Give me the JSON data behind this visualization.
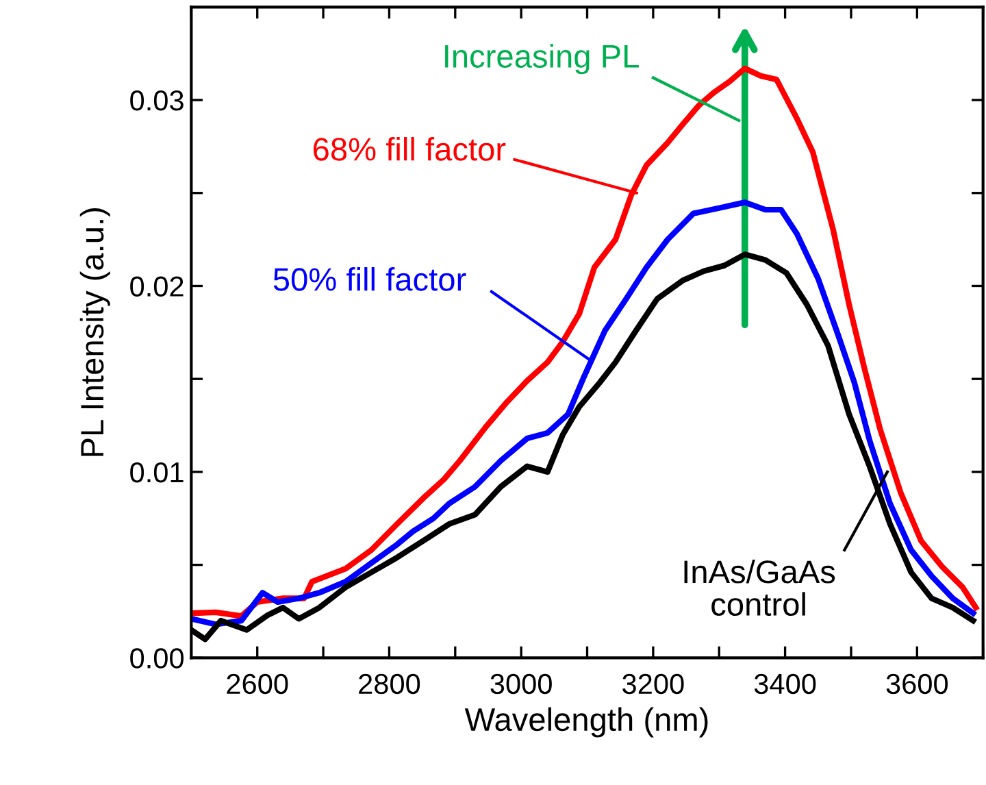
{
  "chart_data": {
    "type": "line",
    "xlabel": "Wavelength (nm)",
    "ylabel": "PL Intensity (a.u.)",
    "xlim": [
      2500,
      3700
    ],
    "ylim": [
      0,
      0.035
    ],
    "xticks": [
      {
        "value": 2500,
        "label": null
      },
      2600,
      {
        "value": 2700,
        "label": null
      },
      2800,
      {
        "value": 2900,
        "label": null
      },
      3000,
      {
        "value": 3100,
        "label": null
      },
      3200,
      {
        "value": 3300,
        "label": null
      },
      3400,
      {
        "value": 3500,
        "label": null
      },
      3600,
      {
        "value": 3700,
        "label": null
      }
    ],
    "yticks": [
      {
        "value": 0,
        "label": "0.00"
      },
      {
        "value": 0.005,
        "label": null
      },
      {
        "value": 0.01,
        "label": "0.01"
      },
      {
        "value": 0.015,
        "label": null
      },
      {
        "value": 0.02,
        "label": "0.02"
      },
      {
        "value": 0.025,
        "label": null
      },
      {
        "value": 0.03,
        "label": "0.03"
      }
    ],
    "grid": false,
    "legend": false,
    "marker": "none",
    "line_style": "solid",
    "annotations": [
      "Increasing PL"
    ],
    "series": [
      {
        "name": "68% fill factor",
        "color": "#ff0000",
        "x": [
          2500,
          2537,
          2576,
          2600,
          2639,
          2671,
          2683,
          2734,
          2773,
          2812,
          2852,
          2883,
          2907,
          2946,
          2977,
          3009,
          3040,
          3063,
          3088,
          3111,
          3143,
          3167,
          3190,
          3222,
          3245,
          3269,
          3292,
          3316,
          3339,
          3363,
          3387,
          3418,
          3442,
          3473,
          3497,
          3520,
          3544,
          3575,
          3606,
          3638,
          3669,
          3689
        ],
        "values": [
          0.0024,
          0.00245,
          0.00225,
          0.003,
          0.0032,
          0.0032,
          0.0041,
          0.0048,
          0.0058,
          0.0072,
          0.0086,
          0.0096,
          0.0106,
          0.0124,
          0.0137,
          0.0149,
          0.0159,
          0.017,
          0.0185,
          0.021,
          0.0225,
          0.0249,
          0.0265,
          0.0277,
          0.0287,
          0.0297,
          0.0304,
          0.031,
          0.0317,
          0.0313,
          0.0311,
          0.029,
          0.0272,
          0.023,
          0.019,
          0.0156,
          0.0123,
          0.0089,
          0.0063,
          0.0049,
          0.0038,
          0.0027
        ]
      },
      {
        "name": "50% fill factor",
        "color": "#0000ff",
        "x": [
          2500,
          2537,
          2576,
          2608,
          2631,
          2663,
          2694,
          2734,
          2773,
          2812,
          2836,
          2867,
          2891,
          2930,
          2969,
          3009,
          3040,
          3071,
          3095,
          3127,
          3159,
          3190,
          3222,
          3261,
          3301,
          3339,
          3370,
          3394,
          3418,
          3450,
          3481,
          3505,
          3528,
          3559,
          3591,
          3622,
          3654,
          3685
        ],
        "values": [
          0.0021,
          0.0018,
          0.002,
          0.0035,
          0.003,
          0.0032,
          0.0035,
          0.0041,
          0.0051,
          0.0061,
          0.0068,
          0.0075,
          0.0083,
          0.0092,
          0.0106,
          0.0118,
          0.0121,
          0.0131,
          0.0151,
          0.0176,
          0.0193,
          0.021,
          0.0225,
          0.0239,
          0.0242,
          0.0245,
          0.0241,
          0.0241,
          0.0228,
          0.0204,
          0.0173,
          0.0148,
          0.0117,
          0.0083,
          0.0058,
          0.0044,
          0.0032,
          0.0024
        ]
      },
      {
        "name": "InAs/GaAs\ncontrol",
        "color": "#000000",
        "x": [
          2500,
          2521,
          2545,
          2584,
          2616,
          2639,
          2663,
          2694,
          2734,
          2773,
          2812,
          2852,
          2891,
          2930,
          2969,
          3009,
          3040,
          3063,
          3088,
          3119,
          3143,
          3174,
          3206,
          3245,
          3277,
          3308,
          3339,
          3370,
          3402,
          3433,
          3465,
          3497,
          3528,
          3559,
          3591,
          3622,
          3654,
          3685
        ],
        "values": [
          0.0015,
          0.001,
          0.002,
          0.0015,
          0.0023,
          0.0027,
          0.0021,
          0.0027,
          0.0038,
          0.0046,
          0.0054,
          0.0063,
          0.0072,
          0.0077,
          0.0092,
          0.0103,
          0.01,
          0.012,
          0.0135,
          0.0148,
          0.0159,
          0.0176,
          0.0193,
          0.0203,
          0.0208,
          0.0211,
          0.0217,
          0.0214,
          0.0207,
          0.019,
          0.0168,
          0.0131,
          0.0103,
          0.0072,
          0.0046,
          0.0032,
          0.0027,
          0.002
        ]
      }
    ]
  }
}
